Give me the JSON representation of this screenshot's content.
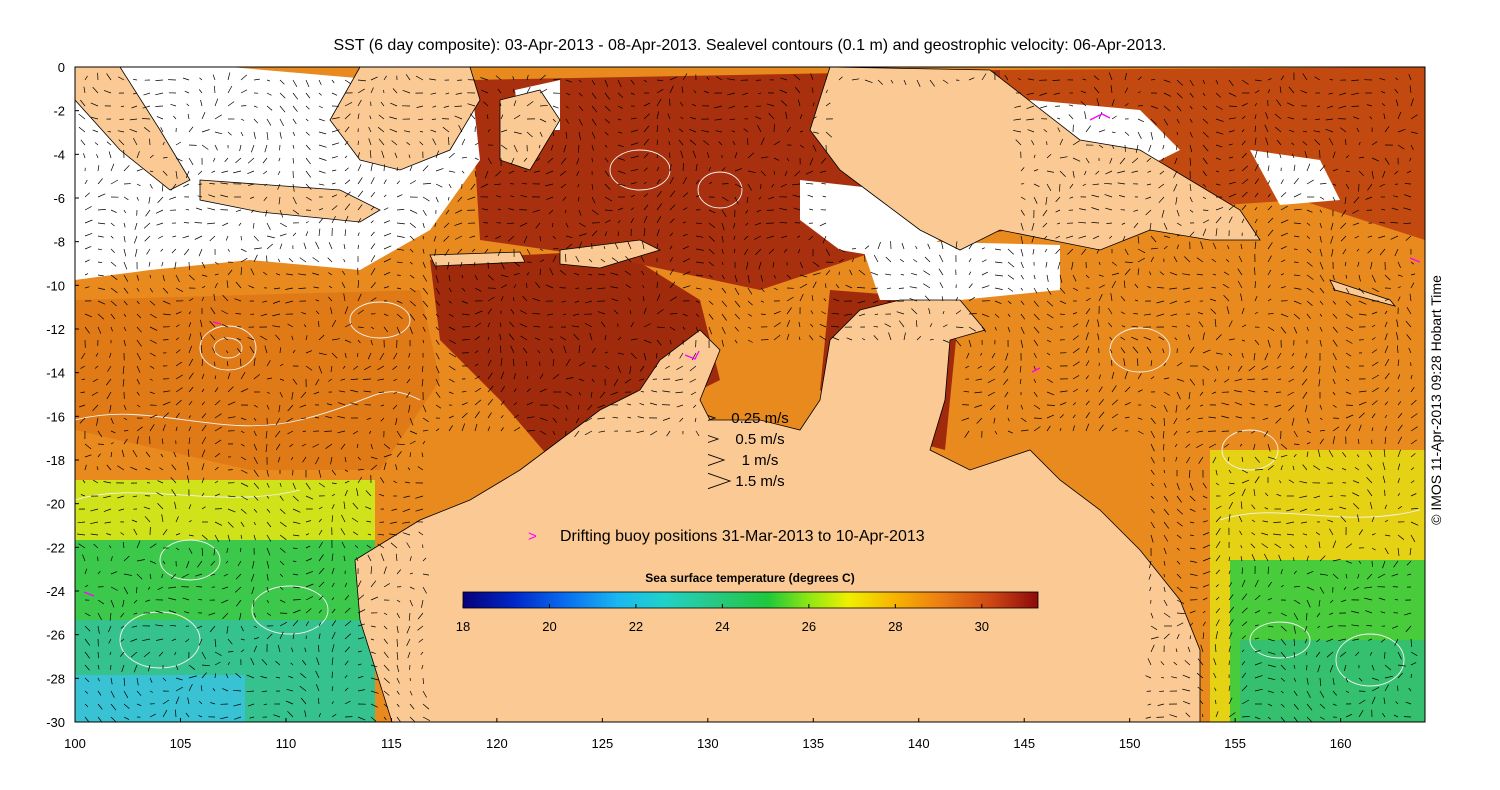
{
  "title": "SST (6 day composite): 03-Apr-2013 - 08-Apr-2013. Sealevel contours (0.1 m) and geostrophic velocity: 06-Apr-2013.",
  "credit": "© IMOS 11-Apr-2013 09:28 Hobart Time",
  "axes": {
    "x_ticks": [
      "100",
      "105",
      "110",
      "115",
      "120",
      "125",
      "130",
      "135",
      "140",
      "145",
      "150",
      "155",
      "160"
    ],
    "y_ticks": [
      "0",
      "-2",
      "-4",
      "-6",
      "-8",
      "-10",
      "-12",
      "-14",
      "-16",
      "-18",
      "-20",
      "-22",
      "-24",
      "-26",
      "-28",
      "-30"
    ],
    "lon_range": [
      100,
      164
    ],
    "lat_range": [
      -30,
      0
    ]
  },
  "velocity_legend": [
    {
      "label": "0.25 m/s",
      "speed": 0.25
    },
    {
      "label": "0.5 m/s",
      "speed": 0.5
    },
    {
      "label": "1 m/s",
      "speed": 1
    },
    {
      "label": "1.5 m/s",
      "speed": 1.5
    }
  ],
  "buoy_legend": {
    "symbol": ">",
    "label": "Drifting buoy positions 31-Mar-2013 to 10-Apr-2013",
    "color": "#ff00ff"
  },
  "colorbar": {
    "title": "Sea surface temperature (degrees C)",
    "min": 18,
    "max": 31.3,
    "ticks": [
      "18",
      "20",
      "22",
      "24",
      "26",
      "28",
      "30"
    ]
  },
  "colors": {
    "land": "#fbc993",
    "cloud": "#ffffff",
    "buoy": "#ff00ff"
  }
}
